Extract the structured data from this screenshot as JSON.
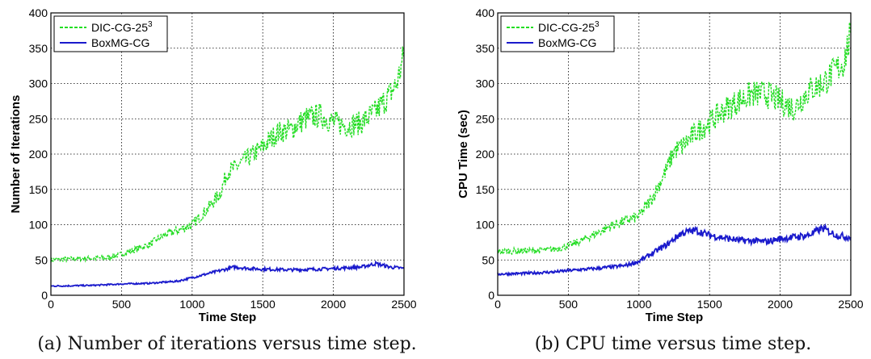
{
  "chart_data": [
    {
      "type": "line",
      "caption": "(a) Number of iterations versus time step.",
      "xlabel": "Time Step",
      "ylabel": "Number of Iterations",
      "xlim": [
        0,
        2500
      ],
      "ylim": [
        0,
        400
      ],
      "xticks": [
        "0",
        "500",
        "1000",
        "1500",
        "2000",
        "2500"
      ],
      "yticks": [
        "0",
        "50",
        "100",
        "150",
        "200",
        "250",
        "300",
        "350",
        "400"
      ],
      "grid": true,
      "legend_position": "top-left",
      "series": [
        {
          "name": "DIC-CG-25",
          "name_superscript": "3",
          "color": "#22dd22",
          "style": "dashed",
          "x": [
            0,
            200,
            400,
            500,
            600,
            700,
            800,
            900,
            1000,
            1100,
            1200,
            1250,
            1300,
            1400,
            1500,
            1600,
            1700,
            1800,
            1900,
            2000,
            2100,
            2200,
            2300,
            2400,
            2450,
            2500
          ],
          "values": [
            50,
            52,
            53,
            58,
            65,
            72,
            85,
            92,
            100,
            120,
            145,
            175,
            180,
            195,
            210,
            230,
            235,
            250,
            255,
            245,
            240,
            245,
            260,
            285,
            300,
            340
          ]
        },
        {
          "name": "BoxMG-CG",
          "color": "#1a1acc",
          "style": "solid",
          "x": [
            0,
            300,
            400,
            500,
            700,
            900,
            1000,
            1100,
            1200,
            1300,
            1400,
            1500,
            1700,
            1900,
            2000,
            2200,
            2300,
            2400,
            2500
          ],
          "values": [
            13,
            14,
            15,
            16,
            17,
            20,
            25,
            30,
            35,
            40,
            38,
            37,
            36,
            37,
            38,
            40,
            45,
            40,
            38
          ]
        }
      ]
    },
    {
      "type": "line",
      "caption": "(b) CPU time versus time step.",
      "xlabel": "Time Step",
      "ylabel": "CPU Time (sec)",
      "xlim": [
        0,
        2500
      ],
      "ylim": [
        0,
        400
      ],
      "xticks": [
        "0",
        "500",
        "1000",
        "1500",
        "2000",
        "2500"
      ],
      "yticks": [
        "0",
        "50",
        "100",
        "150",
        "200",
        "250",
        "300",
        "350",
        "400"
      ],
      "grid": true,
      "legend_position": "top-left",
      "series": [
        {
          "name": "DIC-CG-25",
          "name_superscript": "3",
          "color": "#22dd22",
          "style": "dashed",
          "x": [
            0,
            200,
            400,
            500,
            600,
            700,
            800,
            900,
            1000,
            1100,
            1200,
            1250,
            1300,
            1400,
            1500,
            1600,
            1700,
            1800,
            1900,
            2000,
            2100,
            2200,
            2300,
            2400,
            2450,
            2500
          ],
          "values": [
            62,
            63,
            65,
            70,
            78,
            88,
            98,
            105,
            112,
            140,
            180,
            205,
            210,
            230,
            245,
            262,
            275,
            285,
            285,
            275,
            265,
            290,
            300,
            320,
            330,
            370
          ]
        },
        {
          "name": "BoxMG-CG",
          "color": "#1a1acc",
          "style": "solid",
          "x": [
            0,
            200,
            400,
            500,
            700,
            900,
            1000,
            1100,
            1200,
            1300,
            1400,
            1500,
            1700,
            1900,
            2000,
            2200,
            2300,
            2400,
            2500
          ],
          "values": [
            30,
            31,
            33,
            35,
            38,
            42,
            48,
            60,
            72,
            88,
            92,
            85,
            78,
            76,
            80,
            85,
            95,
            85,
            82
          ]
        }
      ]
    }
  ]
}
